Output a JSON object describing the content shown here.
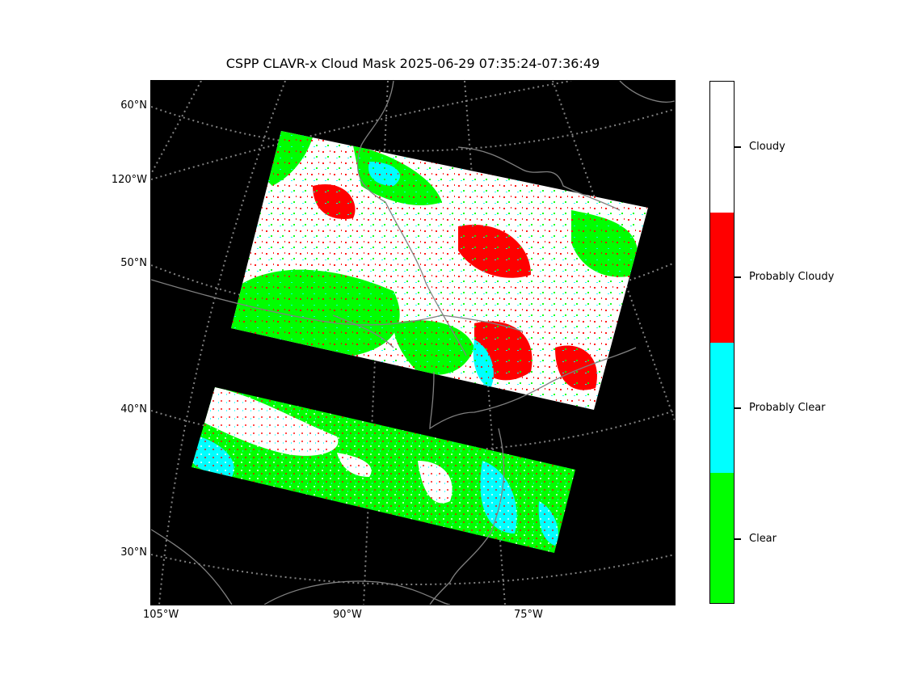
{
  "title": "CSPP CLAVR-x Cloud Mask 2025-06-29 07:35:24-07:36:49",
  "lat_labels": [
    "60°N",
    "120°W",
    "50°N",
    "40°N",
    "30°N"
  ],
  "lon_labels": [
    "105°W",
    "90°W",
    "75°W"
  ],
  "colorbar": {
    "categories": [
      {
        "label": "Cloudy",
        "color": "#ffffff"
      },
      {
        "label": "Probably Cloudy",
        "color": "#ff0000"
      },
      {
        "label": "Probably Clear",
        "color": "#00ffff"
      },
      {
        "label": "Clear",
        "color": "#00ff00"
      }
    ]
  },
  "colors": {
    "background": "#000000",
    "graticule": "#808080",
    "coastline": "#808080"
  }
}
